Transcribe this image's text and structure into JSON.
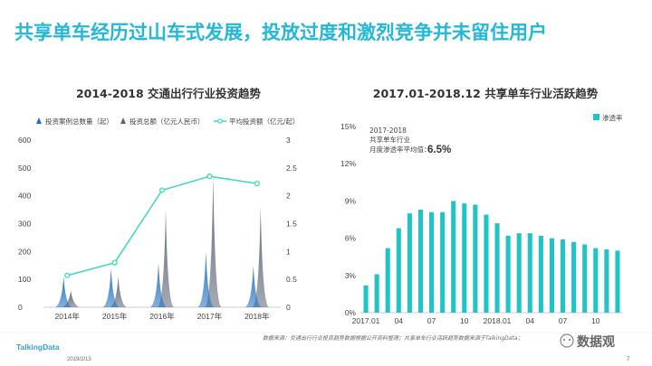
{
  "page": {
    "title": "共享单车经历过山车式发展，投放过度和激烈竞争并未留住用户",
    "source_note": "数据来源：交通出行行业投资趋势数据根据公开资料整理；共享单车行业活跃趋势数据来源于TalkingData；",
    "brand": "TalkingData",
    "date": "2019/2/13",
    "watermark": "数据观",
    "page_number": "7"
  },
  "chart_data": [
    {
      "type": "area",
      "title": "2014-2018  交通出行行业投资趋势",
      "categories": [
        "2014年",
        "2015年",
        "2016年",
        "2017年",
        "2018年"
      ],
      "left_ylim": [
        0,
        600
      ],
      "left_ticks": [
        "0",
        "100",
        "200",
        "300",
        "400",
        "500",
        "600"
      ],
      "right_ylim": [
        0,
        3
      ],
      "right_ticks": [
        "0",
        "0.5",
        "1",
        "1.5",
        "2",
        "2.5",
        "3"
      ],
      "legend_position": "top",
      "series": [
        {
          "name": "投资案例总数量（起）",
          "axis": "left",
          "kind": "spike",
          "color": "#1f6fc0",
          "values": [
            110,
            140,
            160,
            200,
            150
          ]
        },
        {
          "name": "投资总额（亿元人民币）",
          "axis": "left",
          "kind": "spike",
          "color": "#5b6475",
          "values": [
            60,
            110,
            350,
            470,
            360
          ]
        },
        {
          "name": "平均投资额（亿元/起）",
          "axis": "right",
          "kind": "line",
          "color": "#3dd9b9",
          "values": [
            0.57,
            0.8,
            2.1,
            2.35,
            2.22
          ]
        }
      ]
    },
    {
      "type": "bar",
      "title": "2017.01-2018.12  共享单车行业活跃趋势",
      "ylim": [
        0,
        15
      ],
      "y_ticks": [
        "0%",
        "3%",
        "6%",
        "9%",
        "12%",
        "15%"
      ],
      "x_tick_labels": [
        "2017.01",
        "04",
        "07",
        "10",
        "2018.01",
        "04",
        "07",
        "10"
      ],
      "x_tick_indices": [
        0,
        3,
        6,
        9,
        12,
        15,
        18,
        21
      ],
      "legend_position": "top-right",
      "series": [
        {
          "name": "渗透率",
          "color": "#21c4c6",
          "values": [
            2.2,
            3.1,
            5.2,
            6.8,
            8.0,
            8.3,
            8.1,
            8.1,
            9.0,
            8.8,
            8.7,
            7.9,
            7.2,
            6.2,
            6.4,
            6.4,
            6.2,
            6.0,
            5.9,
            5.7,
            5.5,
            5.2,
            5.1,
            5.0
          ]
        }
      ],
      "annotation": {
        "line1": "2017-2018",
        "line2": "共享单车行业",
        "line3": "月度渗透率平均值：",
        "value": "6.5%"
      }
    }
  ]
}
